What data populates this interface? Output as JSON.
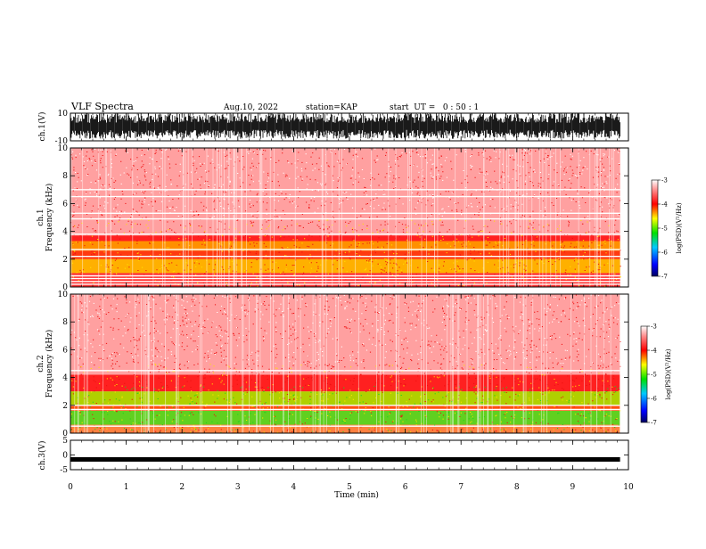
{
  "header": {
    "title": "VLF Spectra",
    "date": "Aug.10, 2022",
    "station": "station=KAP",
    "start": "start  UT =   0 : 50 : 1"
  },
  "chart_data": [
    {
      "type": "line",
      "id": "ch1-waveform",
      "ylabel": "ch.1(V)",
      "ylim": [
        -10,
        10
      ],
      "yticks": [
        "10",
        "-10"
      ],
      "xlim": [
        0,
        10
      ],
      "data_extent_min": 9.85,
      "signal": "dense noise waveform filling roughly -8 to 10 V"
    },
    {
      "type": "heatmap",
      "id": "ch1-spectrogram",
      "ylabel_line1": "ch.1",
      "ylabel_line2": "Frequency (kHz)",
      "ylim": [
        0,
        10
      ],
      "yticks": [
        "0",
        "2",
        "4",
        "6",
        "8",
        "10"
      ],
      "xlim": [
        0,
        10
      ],
      "colorbar": {
        "label": "log(PSD)(V²/Hz)",
        "range": [
          -7,
          -3
        ],
        "ticks": [
          "-3",
          "-4",
          "-5",
          "-6",
          "-7"
        ]
      }
    },
    {
      "type": "heatmap",
      "id": "ch2-spectrogram",
      "ylabel_line1": "ch.2",
      "ylabel_line2": "Frequency (kHz)",
      "ylim": [
        0,
        10
      ],
      "yticks": [
        "0",
        "2",
        "4",
        "6",
        "8",
        "10"
      ],
      "xlim": [
        0,
        10
      ],
      "colorbar": {
        "label": "log(PSD)(V²/Hz)",
        "range": [
          -7,
          -3
        ],
        "ticks": [
          "-3",
          "-4",
          "-5",
          "-6",
          "-7"
        ]
      }
    },
    {
      "type": "line",
      "id": "ch3-waveform",
      "ylabel": "ch.3(V)",
      "ylim": [
        -5,
        5
      ],
      "yticks": [
        "5",
        "0",
        "-5"
      ],
      "xlim": [
        0,
        10
      ],
      "signal": "thick band near -1.5 V"
    }
  ],
  "xaxis": {
    "label": "Time (min)",
    "ticks": [
      "0",
      "1",
      "2",
      "3",
      "4",
      "5",
      "6",
      "7",
      "8",
      "9",
      "10"
    ]
  },
  "colors": {
    "low": "#0000ff",
    "mid": "#00cc00",
    "high": "#ff0000",
    "top": "#ffffff"
  }
}
